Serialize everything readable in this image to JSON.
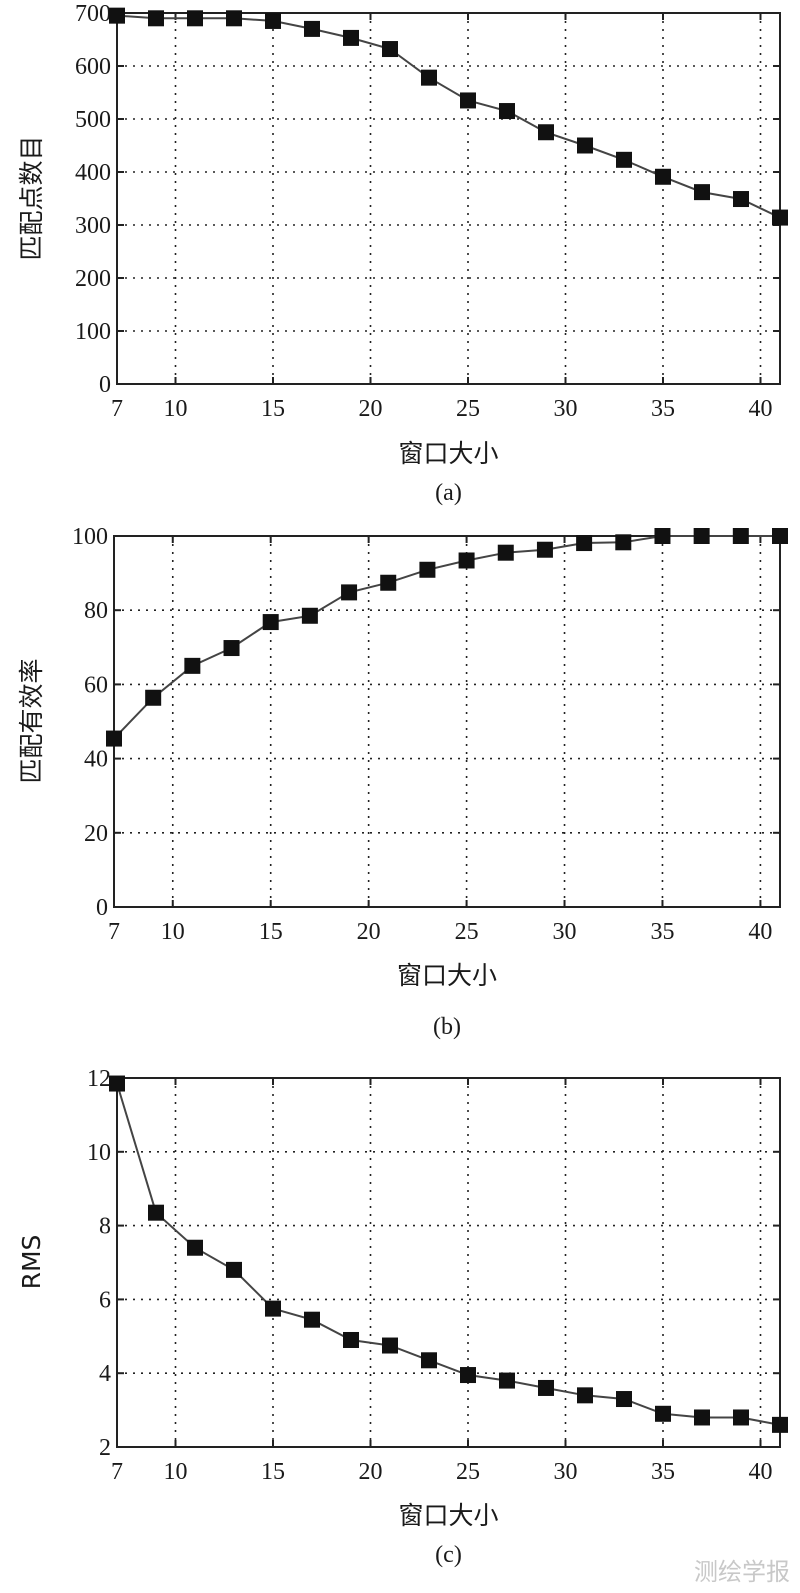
{
  "chart_data": [
    {
      "type": "line",
      "caption": "(a)",
      "xlabel": "窗口大小",
      "ylabel": "匹配点数目",
      "xlim": [
        7,
        41
      ],
      "ylim": [
        0,
        700
      ],
      "xticks": [
        "7",
        "10",
        "15",
        "20",
        "25",
        "30",
        "35",
        "40"
      ],
      "yticks": [
        "0",
        "100",
        "200",
        "300",
        "400",
        "500",
        "600",
        "700"
      ],
      "grid": true,
      "marker": "square",
      "series": [
        {
          "x": [
            7,
            9,
            11,
            13,
            15,
            17,
            19,
            21,
            23,
            25,
            27,
            29,
            31,
            33,
            35,
            37,
            39,
            41
          ],
          "values": [
            695,
            690,
            690,
            690,
            685,
            670,
            653,
            632,
            578,
            535,
            515,
            475,
            450,
            423,
            391,
            362,
            349,
            314
          ]
        }
      ]
    },
    {
      "type": "line",
      "caption": "(b)",
      "xlabel": "窗口大小",
      "ylabel": "匹配有效率",
      "xlim": [
        7,
        41
      ],
      "ylim": [
        0,
        100
      ],
      "xticks": [
        "7",
        "10",
        "15",
        "20",
        "25",
        "30",
        "35",
        "40"
      ],
      "yticks": [
        "0",
        "20",
        "40",
        "60",
        "80",
        "100"
      ],
      "grid": true,
      "marker": "square",
      "series": [
        {
          "x": [
            7,
            9,
            11,
            13,
            15,
            17,
            19,
            21,
            23,
            25,
            27,
            29,
            31,
            33,
            35,
            37,
            39,
            41
          ],
          "values": [
            45.4,
            56.4,
            65,
            69.8,
            76.8,
            78.5,
            84.8,
            87.4,
            90.9,
            93.4,
            95.5,
            96.3,
            98.1,
            98.3,
            100,
            100,
            100,
            100
          ]
        }
      ]
    },
    {
      "type": "line",
      "caption": "(c)",
      "xlabel": "窗口大小",
      "ylabel": "RMS",
      "xlim": [
        7,
        41
      ],
      "ylim": [
        2,
        12
      ],
      "xticks": [
        "7",
        "10",
        "15",
        "20",
        "25",
        "30",
        "35",
        "40"
      ],
      "yticks": [
        "2",
        "4",
        "6",
        "8",
        "10",
        "12"
      ],
      "grid": true,
      "marker": "square",
      "series": [
        {
          "x": [
            7,
            9,
            11,
            13,
            15,
            17,
            19,
            21,
            23,
            25,
            27,
            29,
            31,
            33,
            35,
            37,
            39,
            41
          ],
          "values": [
            11.85,
            8.35,
            7.4,
            6.8,
            5.75,
            5.45,
            4.9,
            4.75,
            4.35,
            3.95,
            3.8,
            3.6,
            3.4,
            3.3,
            2.9,
            2.8,
            2.8,
            2.6
          ]
        }
      ]
    }
  ],
  "watermark": "测绘学报"
}
